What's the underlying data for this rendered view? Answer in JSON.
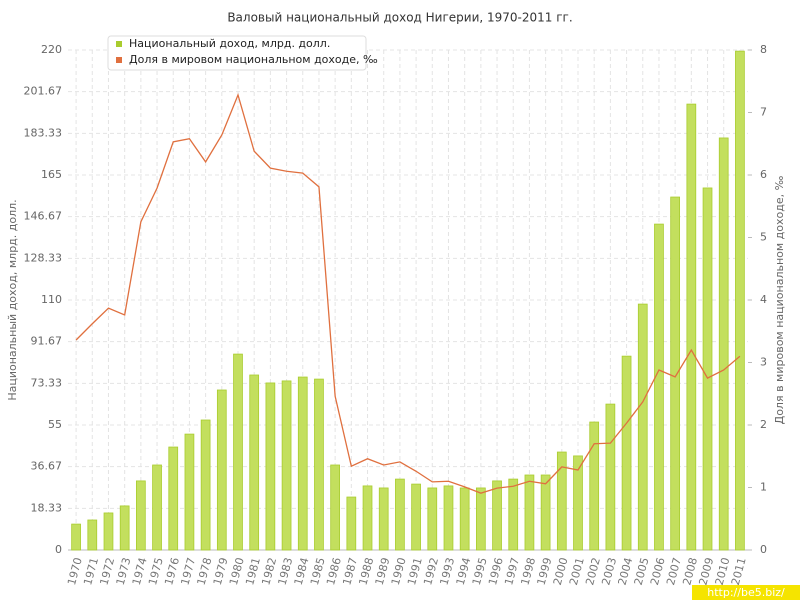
{
  "chart_data": {
    "type": "bar_line",
    "title": "Валовый национальный доход Нигерии, 1970-2011 гг.",
    "y_label": "Национальный доход, млрд. долл.",
    "y2_label": "Доля в мировом национальном доходе, ‰",
    "watermark": "http://be5.biz/",
    "categories": [
      "1970",
      "1971",
      "1972",
      "1973",
      "1974",
      "1975",
      "1976",
      "1977",
      "1978",
      "1979",
      "1980",
      "1981",
      "1982",
      "1983",
      "1984",
      "1985",
      "1986",
      "1987",
      "1988",
      "1989",
      "1990",
      "1991",
      "1992",
      "1993",
      "1994",
      "1995",
      "1996",
      "1997",
      "1998",
      "1999",
      "2000",
      "2001",
      "2002",
      "2003",
      "2004",
      "2005",
      "2006",
      "2007",
      "2008",
      "2009",
      "2010",
      "2011"
    ],
    "series": [
      {
        "name": "Национальный доход, млрд. долл.",
        "type": "bar",
        "color": "#c3df5e",
        "values": [
          11.4,
          13.2,
          16.3,
          19.4,
          30.4,
          37.4,
          45.3,
          51,
          57.2,
          70.4,
          86.2,
          77,
          73.5,
          74.4,
          76.1,
          75.2,
          37.4,
          23.3,
          28.2,
          27.3,
          31.2,
          29,
          27.3,
          28.2,
          27.3,
          27.3,
          30.4,
          31.2,
          33,
          33,
          43.1,
          41.4,
          56.3,
          64.2,
          85.3,
          108.2,
          143.4,
          155.3,
          196.2,
          159.3,
          181.3,
          219.5
        ]
      },
      {
        "name": "Доля в мировом национальном доходе, ‰",
        "type": "line",
        "axis": "y2",
        "color": "#e0703f",
        "values": [
          3.36,
          3.62,
          3.87,
          3.76,
          5.25,
          5.79,
          6.53,
          6.58,
          6.21,
          6.64,
          7.28,
          6.38,
          6.11,
          6.06,
          6.03,
          5.81,
          2.46,
          1.34,
          1.46,
          1.36,
          1.41,
          1.26,
          1.09,
          1.1,
          1.01,
          0.91,
          0.99,
          1.02,
          1.1,
          1.06,
          1.33,
          1.28,
          1.7,
          1.71,
          2.03,
          2.37,
          2.88,
          2.77,
          3.2,
          2.75,
          2.88,
          3.1
        ]
      }
    ],
    "ylim": [
      0,
      220
    ],
    "yticks": [
      0,
      18.33,
      36.67,
      55,
      73.33,
      91.67,
      110,
      128.33,
      146.67,
      165,
      183.33,
      201.67,
      220
    ],
    "y2lim": [
      0,
      8
    ],
    "y2ticks": [
      0,
      1,
      2,
      3,
      4,
      5,
      6,
      7,
      8
    ],
    "grid": true
  }
}
